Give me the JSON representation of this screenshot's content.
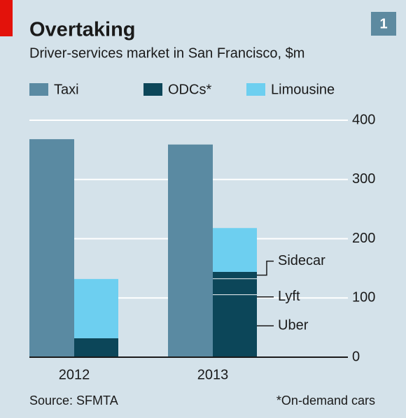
{
  "chart_data": {
    "type": "bar",
    "title": "Overtaking",
    "subtitle": "Driver-services market in San Francisco, $m",
    "badge": "1",
    "categories": [
      "2012",
      "2013"
    ],
    "series": [
      {
        "name": "Taxi",
        "color": "#5a8aa2",
        "values": [
          368,
          359
        ]
      },
      {
        "name": "ODCs*",
        "color": "#0c4659",
        "values": [
          32,
          144
        ]
      },
      {
        "name": "Limousine",
        "color": "#6dcff0",
        "values": [
          100,
          74
        ]
      }
    ],
    "odc_breakdown": {
      "names": [
        "Uber",
        "Lyft",
        "Sidecar"
      ],
      "values": [
        106,
        27,
        11
      ]
    },
    "ylim": [
      0,
      400
    ],
    "yticks": [
      0,
      100,
      200,
      300,
      400
    ],
    "grid": true,
    "source": "Source: SFMTA",
    "footnote": "*On-demand cars"
  }
}
